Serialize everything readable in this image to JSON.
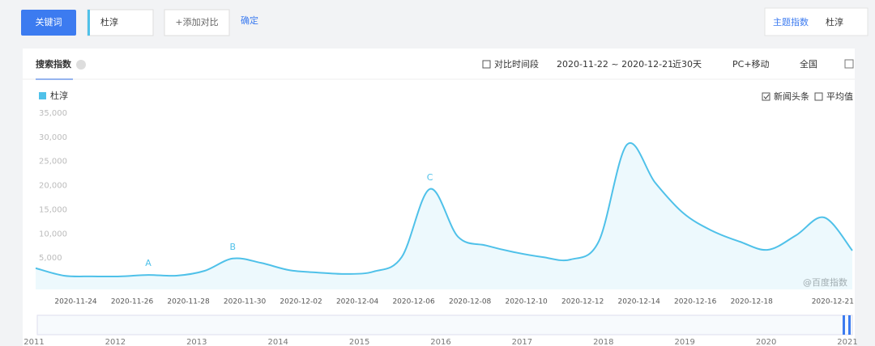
{
  "toolbar": {
    "keyword_button": "关键词",
    "keyword_input": "杜淳",
    "add_compare": "+添加对比",
    "confirm": "确定",
    "topic_index": "主题指数",
    "topic_name": "杜淳"
  },
  "panel": {
    "tab": "搜索指数",
    "compare_period": "对比时间段",
    "date_range": "2020-11-22 ~ 2020-12-21",
    "period": "近30天",
    "device": "PC+移动",
    "region": "全国",
    "news_headline": "新闻头条",
    "news_headline_checked": true,
    "average": "平均值",
    "average_checked": false,
    "watermark": "@百度指数"
  },
  "chart_data": {
    "type": "area",
    "categories": [
      null,
      null,
      "2020-11-24",
      null,
      "2020-11-26",
      null,
      "2020-11-28",
      null,
      "2020-11-30",
      null,
      "2020-12-02",
      null,
      "2020-12-04",
      null,
      "2020-12-06",
      null,
      "2020-12-08",
      null,
      "2020-12-10",
      null,
      "2020-12-12",
      null,
      "2020-12-14",
      null,
      "2020-12-16",
      null,
      "2020-12-18",
      null,
      null,
      "2020-12-21"
    ],
    "series": [
      {
        "name": "杜淳",
        "color": "#4fc1e9",
        "values": [
          4400,
          2850,
          2700,
          2700,
          3000,
          2850,
          3850,
          6400,
          5500,
          4000,
          3500,
          3200,
          3700,
          6700,
          20800,
          10900,
          9100,
          7700,
          6700,
          6200,
          10000,
          30000,
          22100,
          15800,
          12200,
          9900,
          8200,
          11200,
          14900,
          8050
        ]
      }
    ],
    "annotations": [
      null,
      null,
      null,
      null,
      "A",
      null,
      null,
      "B",
      null,
      null,
      null,
      null,
      null,
      null,
      "C",
      null,
      null,
      null,
      null,
      null,
      null,
      null,
      null,
      null,
      null,
      null,
      null,
      null,
      null,
      null
    ],
    "ylim": [
      0,
      35000
    ],
    "yticks": [
      {
        "value": 5000,
        "label": "5,000"
      },
      {
        "value": 10000,
        "label": "10,000"
      },
      {
        "value": 15000,
        "label": "15,000"
      },
      {
        "value": 20000,
        "label": "20,000"
      },
      {
        "value": 25000,
        "label": "25,000"
      },
      {
        "value": 30000,
        "label": "30,000"
      },
      {
        "value": 35000,
        "label": "35,000"
      }
    ],
    "grid": false
  },
  "timeline": {
    "years": [
      "2011",
      "2012",
      "2013",
      "2014",
      "2015",
      "2016",
      "2017",
      "2018",
      "2019",
      "2020",
      "2021"
    ]
  }
}
